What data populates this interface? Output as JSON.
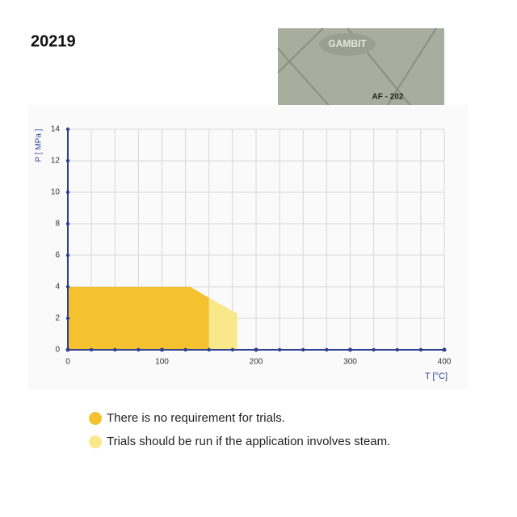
{
  "header": {
    "title": "20219"
  },
  "photo": {
    "brand": "GAMBIT",
    "product": "AF - 202"
  },
  "chart_data": {
    "type": "area",
    "xlabel": "T [°C]",
    "ylabel": "P [ MPa ]",
    "xlim": [
      0,
      400
    ],
    "ylim": [
      0,
      14
    ],
    "xticks": [
      0,
      100,
      200,
      300,
      400
    ],
    "xminorticks": [
      25,
      50,
      75,
      125,
      150,
      175,
      225,
      250,
      275,
      325,
      350,
      375
    ],
    "yticks": [
      0,
      2,
      4,
      6,
      8,
      10,
      12,
      14
    ],
    "grid": true,
    "series": [
      {
        "name": "There is no requirement for trials.",
        "color": "#f5c12e",
        "x": [
          0,
          0,
          130,
          150,
          150
        ],
        "values": [
          0,
          4,
          4,
          3.3,
          0
        ]
      },
      {
        "name": "Trials should be run if the application involves steam.",
        "color": "#f8e88a",
        "x": [
          150,
          150,
          180,
          180
        ],
        "values": [
          0,
          3.3,
          2.3,
          0
        ]
      }
    ]
  }
}
